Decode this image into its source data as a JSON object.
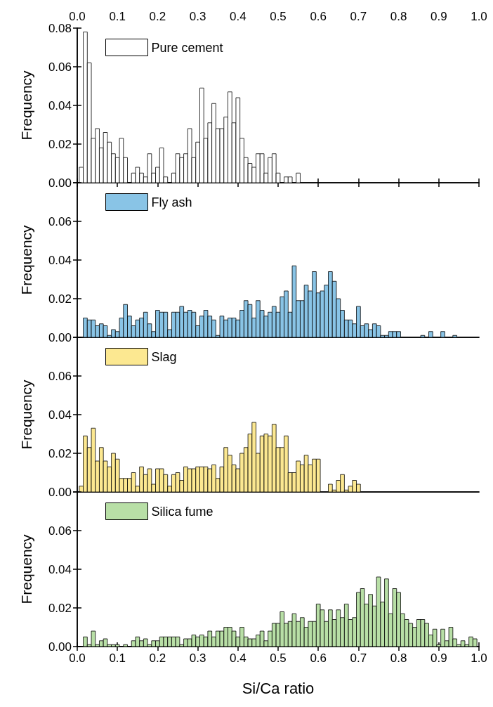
{
  "chart_data": [
    {
      "type": "histogram",
      "ylabel": "Frequency",
      "legend": "top left",
      "grid": false,
      "tick_labels": "y",
      "series": [
        {
          "name": "Pure cement",
          "color": "#ffffff",
          "values": [
            0.008,
            0.078,
            0.062,
            0.023,
            0.028,
            0.018,
            0.026,
            0.021,
            0.015,
            0.013,
            0.023,
            0.013,
            0,
            0.005,
            0.008,
            0.005,
            0.003,
            0.015,
            0.005,
            0.008,
            0.018,
            0.003,
            0,
            0.005,
            0.015,
            0.013,
            0.015,
            0.028,
            0.013,
            0.021,
            0.049,
            0.023,
            0.031,
            0.041,
            0.028,
            0.028,
            0.034,
            0.047,
            0.031,
            0.044,
            0.023,
            0.013,
            0.01,
            0.008,
            0.015,
            0.015,
            0.005,
            0.013,
            0.015,
            0.005,
            0,
            0.003,
            0.003,
            0,
            0.005,
            0,
            0,
            0,
            0,
            0,
            0,
            0,
            0,
            0,
            0,
            0,
            0,
            0,
            0,
            0,
            0,
            0,
            0,
            0,
            0,
            0,
            0,
            0,
            0,
            0,
            0,
            0,
            0,
            0,
            0,
            0,
            0,
            0,
            0,
            0,
            0,
            0,
            0,
            0,
            0,
            0,
            0,
            0,
            0
          ]
        }
      ],
      "bins": [
        0.005,
        0.015,
        0.025,
        0.035,
        0.045,
        0.055,
        0.065,
        0.075,
        0.085,
        0.095,
        0.105,
        0.115,
        0.125,
        0.135,
        0.145,
        0.155,
        0.165,
        0.175,
        0.185,
        0.195,
        0.205,
        0.215,
        0.225,
        0.235,
        0.245,
        0.255,
        0.265,
        0.275,
        0.285,
        0.295,
        0.305,
        0.315,
        0.325,
        0.335,
        0.345,
        0.355,
        0.365,
        0.375,
        0.385,
        0.395,
        0.405,
        0.415,
        0.425,
        0.435,
        0.445,
        0.455,
        0.465,
        0.475,
        0.485,
        0.495,
        0.505,
        0.515,
        0.525,
        0.535,
        0.545,
        0.555,
        0.565,
        0.575,
        0.585,
        0.595,
        0.605,
        0.615,
        0.625,
        0.635,
        0.645,
        0.655,
        0.665,
        0.675,
        0.685,
        0.695,
        0.705,
        0.715,
        0.725,
        0.735,
        0.745,
        0.755,
        0.765,
        0.775,
        0.785,
        0.795,
        0.805,
        0.815,
        0.825,
        0.835,
        0.845,
        0.855,
        0.865,
        0.875,
        0.885,
        0.895,
        0.905,
        0.915,
        0.925,
        0.935,
        0.945,
        0.955,
        0.965,
        0.975,
        0.985,
        0.995
      ],
      "xlim": [
        0,
        1
      ],
      "x2lim": [
        0,
        1
      ],
      "x2ticks": [
        {
          "value": 0,
          "label": "0.0"
        },
        0.1,
        0.2,
        0.3,
        0.4,
        0.5,
        0.6,
        0.7,
        0.8,
        0.9,
        {
          "value": 1,
          "label": "1.0"
        }
      ],
      "ylim": [
        0,
        0.08
      ],
      "yticks": [
        {
          "value": 0,
          "label": "0.00"
        },
        {
          "value": 0.02,
          "label": "0.02"
        },
        {
          "value": 0.04,
          "label": "0.04"
        },
        {
          "value": 0.06,
          "label": "0.06"
        },
        {
          "value": 0.08,
          "label": "0.08"
        }
      ]
    },
    {
      "type": "histogram",
      "ylabel": "Frequency",
      "legend": "top left",
      "grid": false,
      "tick_labels": "y",
      "series": [
        {
          "name": "Fly ash",
          "color": "#89c4e6",
          "values": [
            0,
            0.01,
            0.009,
            0.009,
            0.006,
            0.007,
            0.006,
            0.001,
            0.004,
            0.003,
            0.01,
            0.017,
            0.011,
            0.006,
            0.009,
            0.01,
            0.013,
            0.007,
            0.003,
            0.014,
            0.013,
            0.013,
            0.004,
            0.013,
            0.013,
            0.016,
            0.013,
            0.014,
            0.013,
            0.006,
            0.011,
            0.014,
            0.011,
            0.009,
            0.001,
            0.011,
            0.009,
            0.01,
            0.01,
            0.009,
            0.014,
            0.019,
            0.017,
            0.01,
            0.019,
            0.014,
            0.011,
            0.013,
            0.016,
            0.013,
            0.021,
            0.024,
            0.013,
            0.037,
            0.019,
            0.019,
            0.027,
            0.024,
            0.034,
            0.023,
            0.024,
            0.027,
            0.034,
            0.029,
            0.02,
            0.014,
            0.009,
            0.009,
            0.007,
            0.016,
            0.006,
            0.007,
            0.004,
            0.007,
            0.006,
            0.001,
            0.001,
            0.003,
            0.003,
            0.003,
            0,
            0,
            0,
            0,
            0,
            0.001,
            0,
            0.003,
            0,
            0,
            0.003,
            0,
            0,
            0.001,
            0,
            0,
            0,
            0,
            0
          ]
        }
      ],
      "bins": [
        0.005,
        0.015,
        0.025,
        0.035,
        0.045,
        0.055,
        0.065,
        0.075,
        0.085,
        0.095,
        0.105,
        0.115,
        0.125,
        0.135,
        0.145,
        0.155,
        0.165,
        0.175,
        0.185,
        0.195,
        0.205,
        0.215,
        0.225,
        0.235,
        0.245,
        0.255,
        0.265,
        0.275,
        0.285,
        0.295,
        0.305,
        0.315,
        0.325,
        0.335,
        0.345,
        0.355,
        0.365,
        0.375,
        0.385,
        0.395,
        0.405,
        0.415,
        0.425,
        0.435,
        0.445,
        0.455,
        0.465,
        0.475,
        0.485,
        0.495,
        0.505,
        0.515,
        0.525,
        0.535,
        0.545,
        0.555,
        0.565,
        0.575,
        0.585,
        0.595,
        0.605,
        0.615,
        0.625,
        0.635,
        0.645,
        0.655,
        0.665,
        0.675,
        0.685,
        0.695,
        0.705,
        0.715,
        0.725,
        0.735,
        0.745,
        0.755,
        0.765,
        0.775,
        0.785,
        0.795,
        0.805,
        0.815,
        0.825,
        0.835,
        0.845,
        0.855,
        0.865,
        0.875,
        0.885,
        0.895,
        0.905,
        0.915,
        0.925,
        0.935,
        0.945,
        0.955,
        0.965,
        0.975,
        0.985,
        0.995
      ],
      "xlim": [
        0,
        1
      ],
      "ylim": [
        0,
        0.08
      ],
      "yticks": [
        {
          "value": 0,
          "label": "0.00"
        },
        {
          "value": 0.02,
          "label": "0.02"
        },
        {
          "value": 0.04,
          "label": "0.04"
        },
        {
          "value": 0.06,
          "label": "0.06"
        },
        {
          "value": 0.08,
          "label": null
        }
      ]
    },
    {
      "type": "histogram",
      "ylabel": "Frequency",
      "legend": "top left",
      "grid": false,
      "tick_labels": "y",
      "series": [
        {
          "name": "Slag",
          "color": "#fce891",
          "values": [
            0.003,
            0.029,
            0.023,
            0.033,
            0.016,
            0.023,
            0.016,
            0.013,
            0.02,
            0.017,
            0.007,
            0.007,
            0.007,
            0.01,
            0.003,
            0.013,
            0.009,
            0.012,
            0.004,
            0.012,
            0.012,
            0.009,
            0.003,
            0.009,
            0.01,
            0.006,
            0.013,
            0.012,
            0.012,
            0.013,
            0.013,
            0.013,
            0.012,
            0.014,
            0.007,
            0.013,
            0.023,
            0.019,
            0.014,
            0.012,
            0.02,
            0.023,
            0.03,
            0.036,
            0.02,
            0.029,
            0.03,
            0.029,
            0.035,
            0.023,
            0.023,
            0.029,
            0.01,
            0.01,
            0.016,
            0.014,
            0.019,
            0.014,
            0.017,
            0.017,
            0,
            0,
            0.004,
            0.001,
            0.006,
            0.009,
            0.001,
            0.003,
            0.006,
            0.004,
            0,
            0,
            0,
            0,
            0,
            0,
            0,
            0,
            0,
            0,
            0,
            0,
            0,
            0,
            0,
            0,
            0,
            0,
            0,
            0,
            0,
            0,
            0,
            0,
            0,
            0,
            0,
            0,
            0
          ]
        }
      ],
      "bins": [
        0.005,
        0.015,
        0.025,
        0.035,
        0.045,
        0.055,
        0.065,
        0.075,
        0.085,
        0.095,
        0.105,
        0.115,
        0.125,
        0.135,
        0.145,
        0.155,
        0.165,
        0.175,
        0.185,
        0.195,
        0.205,
        0.215,
        0.225,
        0.235,
        0.245,
        0.255,
        0.265,
        0.275,
        0.285,
        0.295,
        0.305,
        0.315,
        0.325,
        0.335,
        0.345,
        0.355,
        0.365,
        0.375,
        0.385,
        0.395,
        0.405,
        0.415,
        0.425,
        0.435,
        0.445,
        0.455,
        0.465,
        0.475,
        0.485,
        0.495,
        0.505,
        0.515,
        0.525,
        0.535,
        0.545,
        0.555,
        0.565,
        0.575,
        0.585,
        0.595,
        0.605,
        0.615,
        0.625,
        0.635,
        0.645,
        0.655,
        0.665,
        0.675,
        0.685,
        0.695,
        0.705,
        0.715,
        0.725,
        0.735,
        0.745,
        0.755,
        0.765,
        0.775,
        0.785,
        0.795,
        0.805,
        0.815,
        0.825,
        0.835,
        0.845,
        0.855,
        0.865,
        0.875,
        0.885,
        0.895,
        0.905,
        0.915,
        0.925,
        0.935,
        0.945,
        0.955,
        0.965,
        0.975,
        0.985,
        0.995
      ],
      "xlim": [
        0,
        1
      ],
      "ylim": [
        0,
        0.08
      ],
      "yticks": [
        {
          "value": 0,
          "label": "0.00"
        },
        {
          "value": 0.02,
          "label": "0.02"
        },
        {
          "value": 0.04,
          "label": "0.04"
        },
        {
          "value": 0.06,
          "label": "0.06"
        },
        {
          "value": 0.08,
          "label": null
        }
      ]
    },
    {
      "type": "histogram",
      "ylabel": "Frequency",
      "xlabel": "Si/Ca ratio",
      "legend": "top left",
      "grid": false,
      "series": [
        {
          "name": "Silica fume",
          "color": "#b8dfa6",
          "values": [
            0,
            0.005,
            0.001,
            0.008,
            0.001,
            0.003,
            0.004,
            0.001,
            0.001,
            0.001,
            0,
            0.001,
            0,
            0.003,
            0.005,
            0.003,
            0.004,
            0.001,
            0.003,
            0.003,
            0.005,
            0.005,
            0.005,
            0.005,
            0.005,
            0.001,
            0.004,
            0.004,
            0.006,
            0.005,
            0.006,
            0.005,
            0.008,
            0.005,
            0.008,
            0.008,
            0.01,
            0.01,
            0.008,
            0.005,
            0.01,
            0.005,
            0.004,
            0.004,
            0.006,
            0.008,
            0.003,
            0.008,
            0.012,
            0.012,
            0.018,
            0.012,
            0.013,
            0.017,
            0.013,
            0.015,
            0.01,
            0.013,
            0.013,
            0.022,
            0.019,
            0.013,
            0.019,
            0.014,
            0.019,
            0.015,
            0.022,
            0.014,
            0.015,
            0.028,
            0.03,
            0.022,
            0.027,
            0.021,
            0.036,
            0.023,
            0.035,
            0.017,
            0.03,
            0.028,
            0.017,
            0.014,
            0.012,
            0.01,
            0.014,
            0.014,
            0.012,
            0.006,
            0.009,
            0.001,
            0.009,
            0.003,
            0.01,
            0.004,
            0.001,
            0.003,
            0.001,
            0.005,
            0.004
          ]
        }
      ],
      "bins": [
        0.005,
        0.015,
        0.025,
        0.035,
        0.045,
        0.055,
        0.065,
        0.075,
        0.085,
        0.095,
        0.105,
        0.115,
        0.125,
        0.135,
        0.145,
        0.155,
        0.165,
        0.175,
        0.185,
        0.195,
        0.205,
        0.215,
        0.225,
        0.235,
        0.245,
        0.255,
        0.265,
        0.275,
        0.285,
        0.295,
        0.305,
        0.315,
        0.325,
        0.335,
        0.345,
        0.355,
        0.365,
        0.375,
        0.385,
        0.395,
        0.405,
        0.415,
        0.425,
        0.435,
        0.445,
        0.455,
        0.465,
        0.475,
        0.485,
        0.495,
        0.505,
        0.515,
        0.525,
        0.535,
        0.545,
        0.555,
        0.565,
        0.575,
        0.585,
        0.595,
        0.605,
        0.615,
        0.625,
        0.635,
        0.645,
        0.655,
        0.665,
        0.675,
        0.685,
        0.695,
        0.705,
        0.715,
        0.725,
        0.735,
        0.745,
        0.755,
        0.765,
        0.775,
        0.785,
        0.795,
        0.805,
        0.815,
        0.825,
        0.835,
        0.845,
        0.855,
        0.865,
        0.875,
        0.885,
        0.895,
        0.905,
        0.915,
        0.925,
        0.935,
        0.945,
        0.955,
        0.965,
        0.975,
        0.985,
        0.995
      ],
      "xlim": [
        0,
        1
      ],
      "xticks": [
        {
          "value": 0,
          "label": "0.0"
        },
        0.1,
        0.2,
        0.3,
        0.4,
        0.5,
        0.6,
        0.7,
        0.8,
        0.9,
        {
          "value": 1,
          "label": "1.0"
        }
      ],
      "ylim": [
        0,
        0.08
      ],
      "yticks": [
        {
          "value": 0,
          "label": "0.00"
        },
        {
          "value": 0.02,
          "label": "0.02"
        },
        {
          "value": 0.04,
          "label": "0.04"
        },
        {
          "value": 0.06,
          "label": "0.06"
        },
        {
          "value": 0.08,
          "label": null
        }
      ]
    }
  ]
}
